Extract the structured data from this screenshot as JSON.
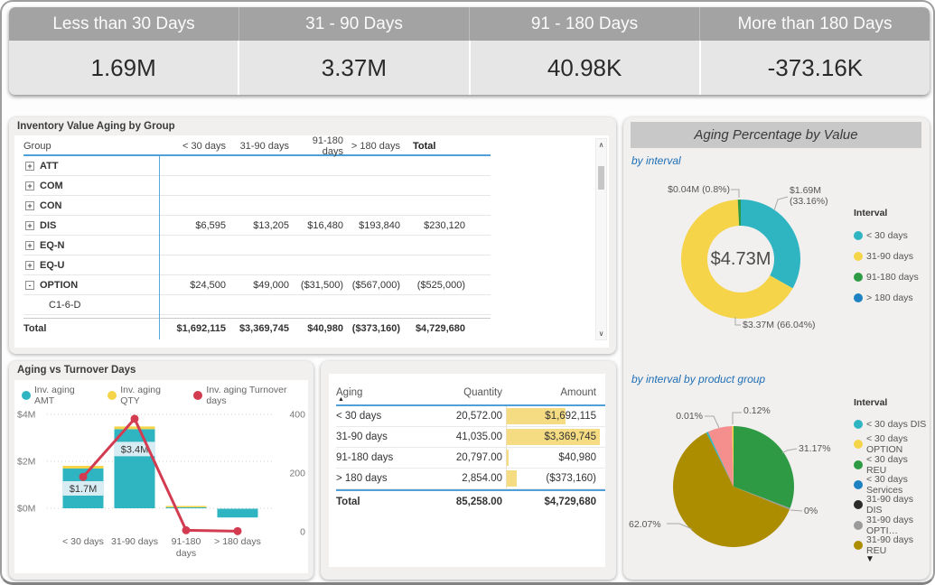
{
  "kpi": {
    "cards": [
      {
        "label": "Less than 30 Days",
        "value": "1.69M"
      },
      {
        "label": "31 - 90 Days",
        "value": "3.37M"
      },
      {
        "label": "91 - 180 Days",
        "value": "40.98K"
      },
      {
        "label": "More than 180 Days",
        "value": "-373.16K"
      }
    ]
  },
  "inventory": {
    "title": "Inventory Value Aging by Group",
    "columns": [
      "Group",
      "< 30 days",
      "31-90 days",
      "91-180 days",
      "> 180 days",
      "Total"
    ],
    "rows": [
      {
        "expand": "+",
        "label": "ATT",
        "child": false,
        "values": [
          "",
          "",
          "",
          "",
          ""
        ]
      },
      {
        "expand": "+",
        "label": "COM",
        "child": false,
        "values": [
          "",
          "",
          "",
          "",
          ""
        ]
      },
      {
        "expand": "+",
        "label": "CON",
        "child": false,
        "values": [
          "",
          "",
          "",
          "",
          ""
        ]
      },
      {
        "expand": "+",
        "label": "DIS",
        "child": false,
        "values": [
          "$6,595",
          "$13,205",
          "$16,480",
          "$193,840",
          "$230,120"
        ]
      },
      {
        "expand": "+",
        "label": "EQ-N",
        "child": false,
        "values": [
          "",
          "",
          "",
          "",
          ""
        ]
      },
      {
        "expand": "+",
        "label": "EQ-U",
        "child": false,
        "values": [
          "",
          "",
          "",
          "",
          ""
        ]
      },
      {
        "expand": "-",
        "label": "OPTION",
        "child": false,
        "values": [
          "$24,500",
          "$49,000",
          "($31,500)",
          "($567,000)",
          "($525,000)"
        ]
      },
      {
        "expand": "",
        "label": "C1-6-D",
        "child": true,
        "values": [
          "",
          "",
          "",
          "",
          ""
        ]
      }
    ],
    "total_label": "Total",
    "total_values": [
      "$1,692,115",
      "$3,369,745",
      "$40,980",
      "($373,160)",
      "$4,729,680"
    ]
  },
  "aging_table": {
    "columns": [
      "Aging",
      "Quantity",
      "Amount"
    ],
    "rows": [
      {
        "aging": "< 30 days",
        "qty": "20,572.00",
        "amount": "$1,692,115",
        "bar_pct": 63
      },
      {
        "aging": "31-90 days",
        "qty": "41,035.00",
        "amount": "$3,369,745",
        "bar_pct": 100
      },
      {
        "aging": "91-180 days",
        "qty": "20,797.00",
        "amount": "$40,980",
        "bar_pct": 2
      },
      {
        "aging": "> 180 days",
        "qty": "2,854.00",
        "amount": "($373,160)",
        "bar_pct": 11
      }
    ],
    "total": {
      "aging": "Total",
      "qty": "85,258.00",
      "amount": "$4,729,680"
    }
  },
  "right_panel": {
    "title": "Aging Percentage by Value"
  },
  "icons": {
    "scroll_up": "∧",
    "scroll_down": "∨",
    "legend_more": "▼",
    "sort_asc": "▲"
  },
  "chart_data": [
    {
      "id": "aging-vs-turnover",
      "type": "bar",
      "subtype": "combo bar + line, dual axis",
      "title": "Aging vs Turnover Days",
      "categories": [
        "< 30 days",
        "31-90 days",
        "91-180 days",
        "> 180 days"
      ],
      "x_tick_lines": [
        [
          "< 30 days"
        ],
        [
          "31-90 days"
        ],
        [
          "91-180",
          "days"
        ],
        [
          "> 180 days"
        ]
      ],
      "series": [
        {
          "name": "Inv. aging AMT",
          "type": "bar",
          "axis": "left",
          "color": "#2FB5C2",
          "values": [
            1692115,
            3369745,
            40980,
            -373160
          ]
        },
        {
          "name": "Inv. aging QTY",
          "type": "bar",
          "axis": "left",
          "color": "#F5D44A",
          "values": [
            20572,
            41035,
            20797,
            2854
          ]
        },
        {
          "name": "Inv. aging Turnover days",
          "type": "line",
          "axis": "right",
          "color": "#D23B50",
          "values": [
            187,
            385,
            5,
            2
          ]
        }
      ],
      "bar_labels": [
        {
          "index": 0,
          "text": "$1.7M"
        },
        {
          "index": 1,
          "text": "$3.4M"
        }
      ],
      "y_left": {
        "ticks": [
          "$4M",
          "$2M",
          "$0M"
        ],
        "min": 0,
        "max": 4000000
      },
      "y_right": {
        "ticks": [
          "400",
          "200",
          "0"
        ],
        "min": 0,
        "max": 400
      },
      "grid": "dotted horizontal"
    },
    {
      "id": "aging-percentage-by-interval",
      "type": "pie",
      "subtype": "donut",
      "subtitle": "by interval",
      "center_label": "$4.73M",
      "legend_title": "Interval",
      "legend_position": "right",
      "slices": [
        {
          "name": "< 30 days",
          "color": "#2FB5C2",
          "pct": 33.16,
          "value_label": "$1.69M (33.16%)"
        },
        {
          "name": "31-90 days",
          "color": "#F5D44A",
          "pct": 66.04,
          "value_label": "$3.37M (66.04%)"
        },
        {
          "name": "91-180 days",
          "color": "#2E9B44",
          "pct": 0.8,
          "value_label": "$0.04M (0.8%)"
        }
      ],
      "legend": [
        {
          "label": "< 30 days",
          "color": "#2FB5C2"
        },
        {
          "label": "31-90 days",
          "color": "#F5D44A"
        },
        {
          "label": "91-180 days",
          "color": "#2E9B44"
        },
        {
          "label": "> 180 days",
          "color": "#1D81C2"
        }
      ]
    },
    {
      "id": "aging-percentage-by-interval-by-product-group",
      "type": "pie",
      "subtitle": "by interval by product group",
      "legend_title": "Interval",
      "legend_position": "right",
      "legend_scrollable": true,
      "slices": [
        {
          "name": "< 30 days REU",
          "color": "#2E9B44",
          "pct": 31.17,
          "label": "31.17%"
        },
        {
          "name": "31-90 days OPTI…",
          "color": "#9A9A9A",
          "pct": 0,
          "label": "0%",
          "draw_pct": 0.4
        },
        {
          "name": "31-90 days REU",
          "color": "#AC8D00",
          "pct": 62.07,
          "label": "62.07%"
        },
        {
          "name": "< 30 days DIS",
          "color": "#2FB5C2",
          "pct": 0.01,
          "label": "0.01%",
          "draw_pct": 0.5
        },
        {
          "name": "(unlabeled)",
          "color": "#F58F8D",
          "pct": 6.63,
          "label": ""
        },
        {
          "name": "< 30 days OPTION",
          "color": "#F5D44A",
          "pct": 0.12,
          "label": "0.12%",
          "draw_pct": 0.4
        }
      ],
      "legend": [
        {
          "label": "< 30 days DIS",
          "color": "#2FB5C2"
        },
        {
          "label": "< 30 days OPTION",
          "color": "#F5D44A"
        },
        {
          "label": "< 30 days REU",
          "color": "#2E9B44"
        },
        {
          "label": "< 30 days Services",
          "color": "#1D81C2"
        },
        {
          "label": "31-90 days DIS",
          "color": "#2B2B2B"
        },
        {
          "label": "31-90 days OPTI…",
          "color": "#9A9A9A"
        },
        {
          "label": "31-90 days REU",
          "color": "#AC8D00"
        }
      ]
    }
  ]
}
